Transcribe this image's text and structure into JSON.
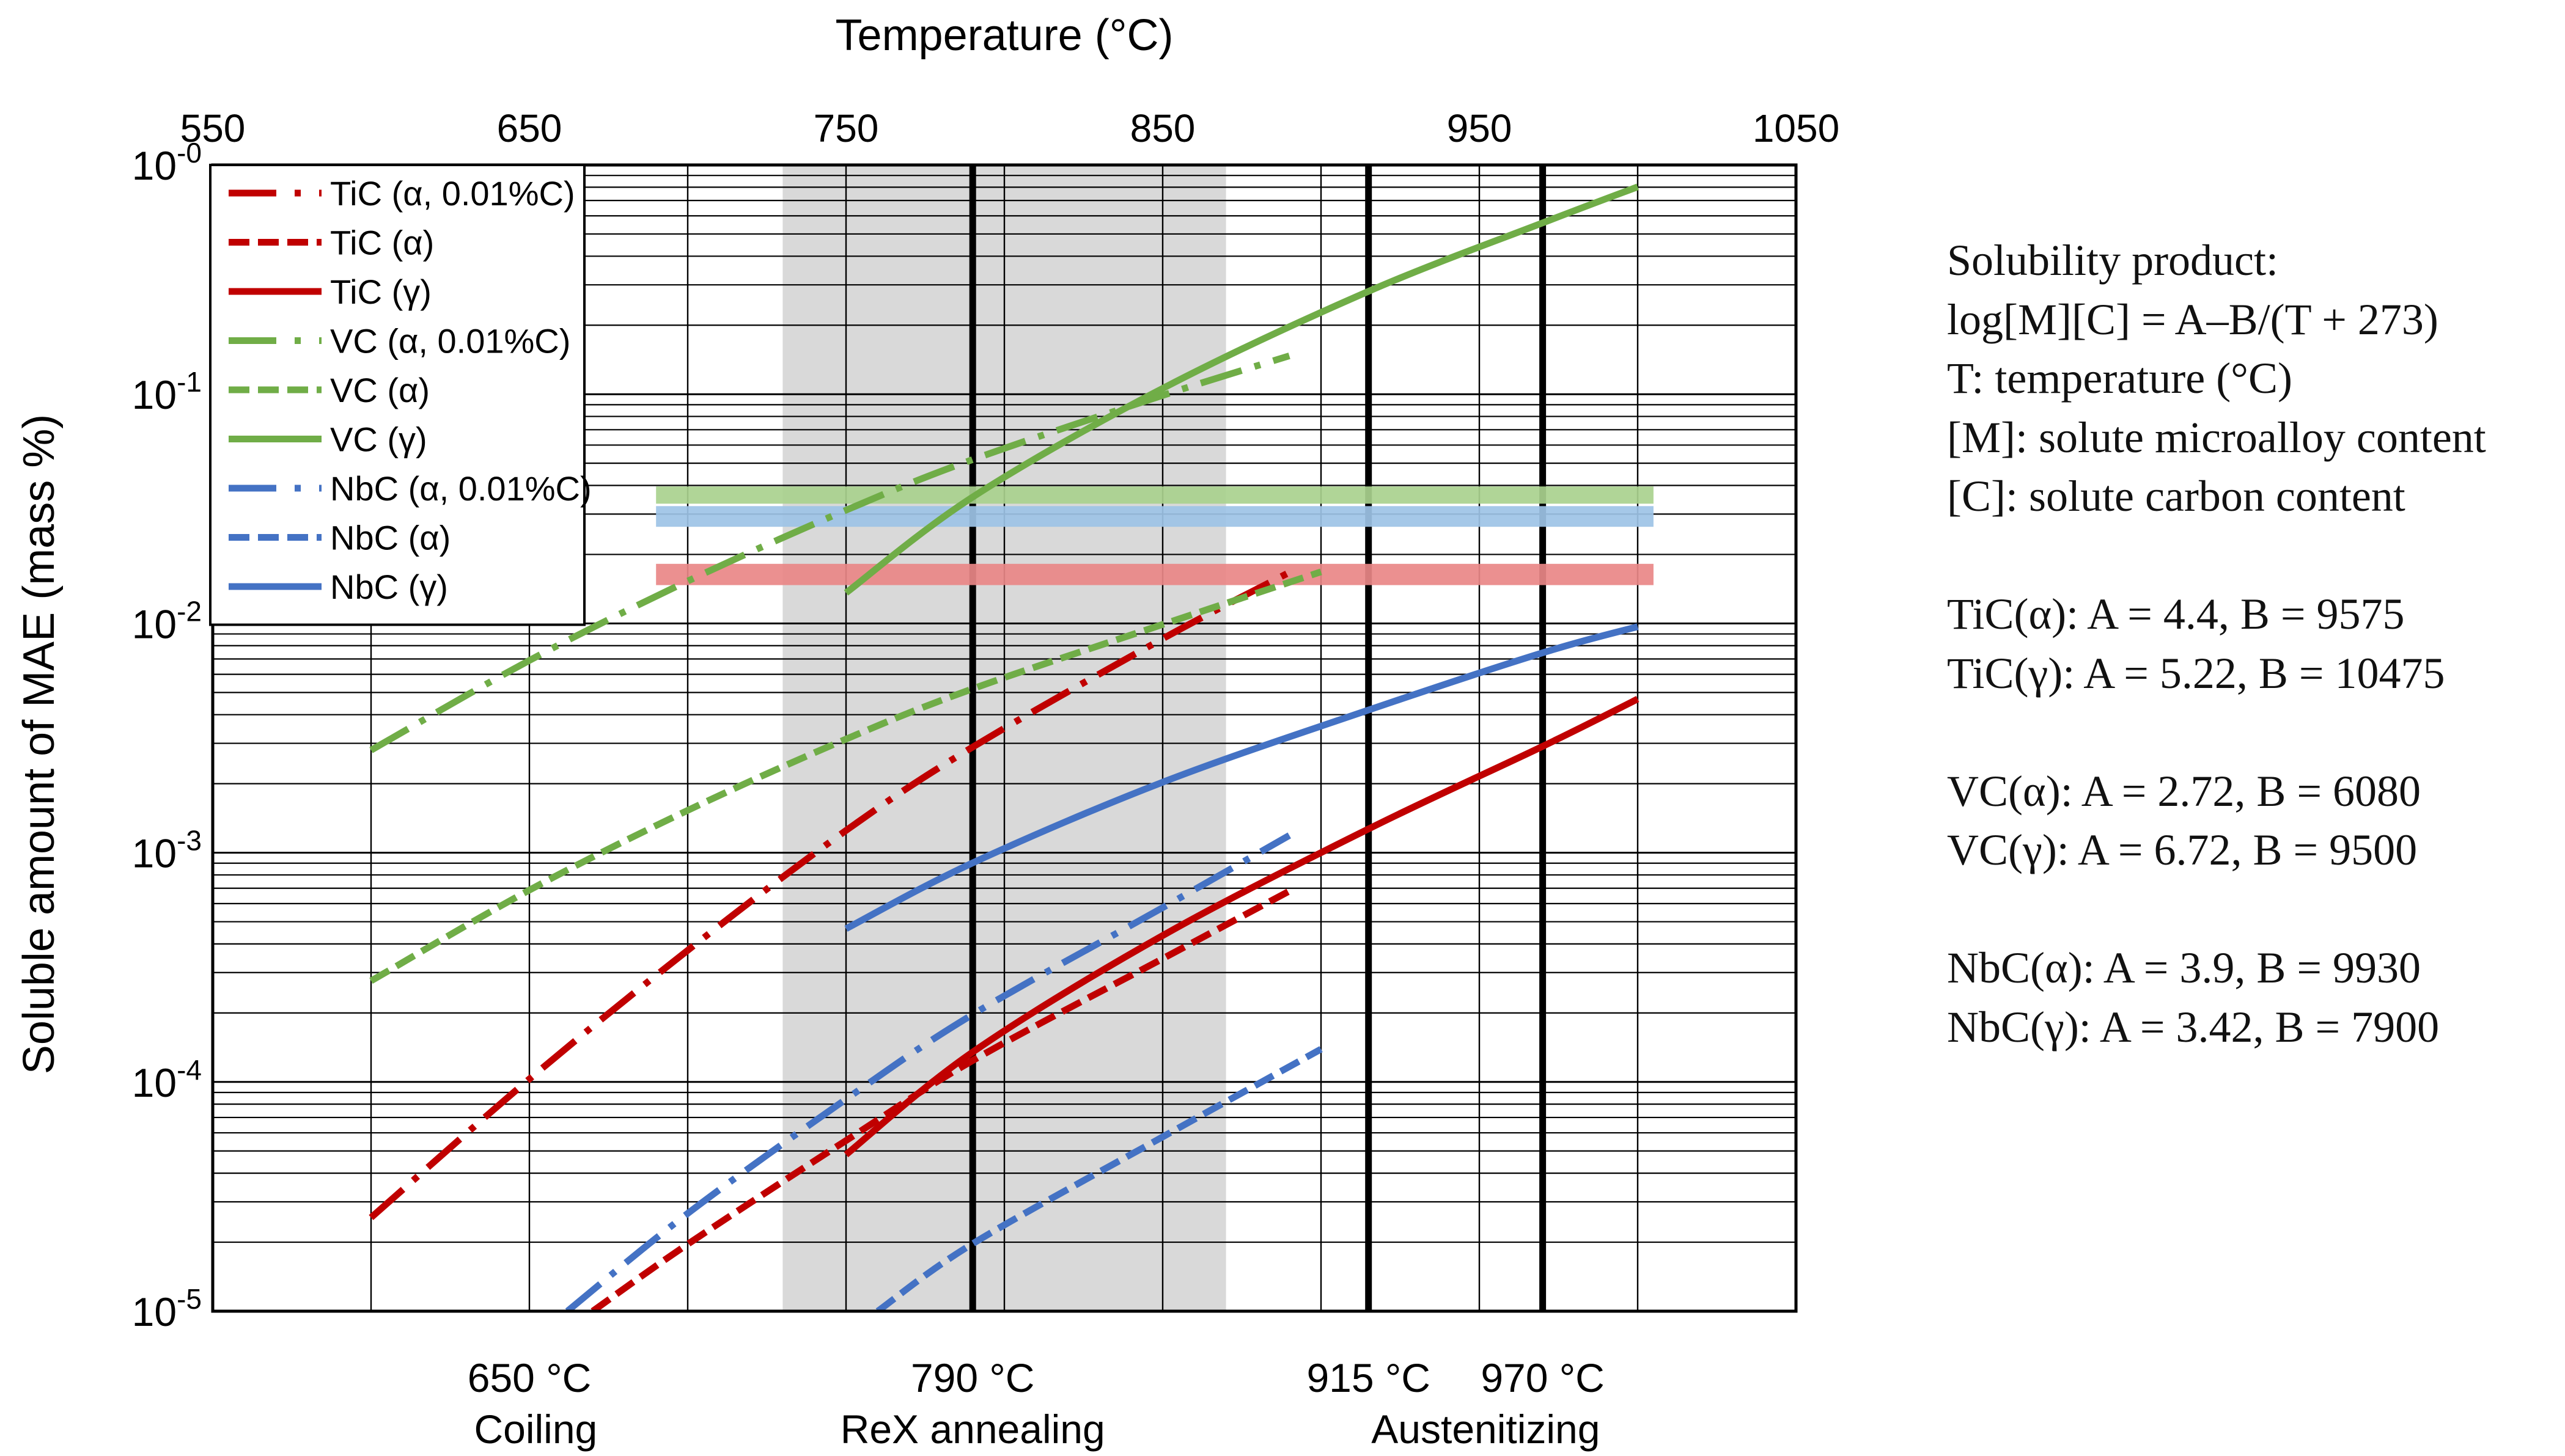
{
  "chart_data": {
    "type": "line",
    "title": "",
    "xlabel": "Temperature (°C)",
    "ylabel": "Soluble amount of MAE  (mass %)",
    "x_axis_position": "top",
    "xlim": [
      550,
      1050
    ],
    "x_ticks": [
      550,
      650,
      750,
      850,
      950,
      1050
    ],
    "x_tick_labels": [
      "550",
      "650",
      "750",
      "850",
      "950",
      "1050"
    ],
    "y_scale": "log",
    "ylim": [
      1e-05,
      1
    ],
    "y_ticks": [
      1,
      0.1,
      0.01,
      0.001,
      0.0001,
      1e-05
    ],
    "y_tick_labels": [
      {
        "base": "10",
        "exp": "-0"
      },
      {
        "base": "10",
        "exp": "-1"
      },
      {
        "base": "10",
        "exp": "-2"
      },
      {
        "base": "10",
        "exp": "-3"
      },
      {
        "base": "10",
        "exp": "-4"
      },
      {
        "base": "10",
        "exp": "-5"
      }
    ],
    "grid": true,
    "legend_position": "top-left",
    "series": [
      {
        "name": "TiC (α, 0.01%C)",
        "color": "#c00000",
        "style": "dashdot",
        "x": [
          600,
          650,
          700,
          750,
          790,
          850,
          890
        ],
        "y": [
          2.56e-05,
          0.000103,
          0.000375,
          0.00125,
          0.00289,
          0.00858,
          0.0167
        ]
      },
      {
        "name": "TiC (α)",
        "color": "#c00000",
        "style": "dashed",
        "x": [
          670,
          700,
          750,
          790,
          850,
          890
        ],
        "y": [
          1e-05,
          1.96e-05,
          5.55e-05,
          0.000124,
          0.000345,
          0.00068
        ]
      },
      {
        "name": "TiC (γ)",
        "color": "#c00000",
        "style": "solid",
        "x": [
          750,
          790,
          850,
          915,
          970,
          1000
        ],
        "y": [
          4.82e-05,
          0.000135,
          0.000435,
          0.00127,
          0.00291,
          0.00468
        ]
      },
      {
        "name": "VC (α, 0.01%C)",
        "color": "#70ad47",
        "style": "dashdot",
        "x": [
          600,
          650,
          700,
          750,
          790,
          850,
          890
        ],
        "y": [
          0.0028,
          0.0069,
          0.0153,
          0.0312,
          0.0519,
          0.0988,
          0.147
        ]
      },
      {
        "name": "VC (α)",
        "color": "#70ad47",
        "style": "dashed",
        "x": [
          600,
          650,
          700,
          750,
          790,
          850,
          900
        ],
        "y": [
          0.000276,
          0.000687,
          0.00153,
          0.00313,
          0.00519,
          0.0099,
          0.0168
        ]
      },
      {
        "name": "VC (γ)",
        "color": "#70ad47",
        "style": "solid",
        "x": [
          750,
          790,
          850,
          915,
          970,
          1000
        ],
        "y": [
          0.0136,
          0.0356,
          0.106,
          0.281,
          0.559,
          0.803
        ]
      },
      {
        "name": "NbC (α, 0.01%C)",
        "color": "#4472c4",
        "style": "dashdot",
        "x": [
          662,
          700,
          750,
          790,
          850,
          890
        ],
        "y": [
          1e-05,
          2.67e-05,
          8.41e-05,
          0.000197,
          0.000576,
          0.00119
        ]
      },
      {
        "name": "NbC (α)",
        "color": "#4472c4",
        "style": "dashed",
        "x": [
          760,
          790,
          850,
          900
        ],
        "y": [
          1e-05,
          1.97e-05,
          5.76e-05,
          0.000139
        ]
      },
      {
        "name": "NbC (γ)",
        "color": "#4472c4",
        "style": "solid",
        "x": [
          750,
          790,
          850,
          915,
          970,
          1000
        ],
        "y": [
          0.000466,
          0.000903,
          0.00203,
          0.00419,
          0.00745,
          0.00968
        ]
      }
    ],
    "shaded_region": {
      "x": [
        730,
        870
      ],
      "color": "#d9d9d9"
    },
    "horizontal_bands": [
      {
        "x": [
          690,
          1005
        ],
        "y": [
          0.0333,
          0.0396
        ],
        "color": "#a9d18e"
      },
      {
        "x": [
          690,
          1005
        ],
        "y": [
          0.0264,
          0.0325
        ],
        "color": "#9dc3e6"
      },
      {
        "x": [
          690,
          1005
        ],
        "y": [
          0.0147,
          0.0182
        ],
        "color": "#e98787"
      }
    ],
    "vertical_markers": [
      {
        "x": 790,
        "label": "790 °C",
        "caption": "ReX annealing"
      },
      {
        "x": 915,
        "label": "915 °C",
        "caption": "Austenitizing"
      },
      {
        "x": 970,
        "label": "970 °C",
        "caption": ""
      }
    ],
    "annotations": [
      {
        "x": 650,
        "label": "650 °C",
        "caption": "Coiling"
      }
    ]
  },
  "notes": {
    "formula": [
      "Solubility product:",
      "log[M][C] = A–B/(T + 273)",
      "T: temperature (°C)",
      "[M]: solute microalloy content",
      "[C]: solute carbon content"
    ],
    "tic": [
      "TiC(α): A = 4.4, B = 9575",
      "TiC(γ): A = 5.22, B = 10475"
    ],
    "vc": [
      "VC(α): A = 2.72, B = 6080",
      "VC(γ): A = 6.72, B = 9500"
    ],
    "nbc": [
      "NbC(α): A = 3.9, B = 9930",
      "NbC(γ): A = 3.42, B = 7900"
    ]
  }
}
